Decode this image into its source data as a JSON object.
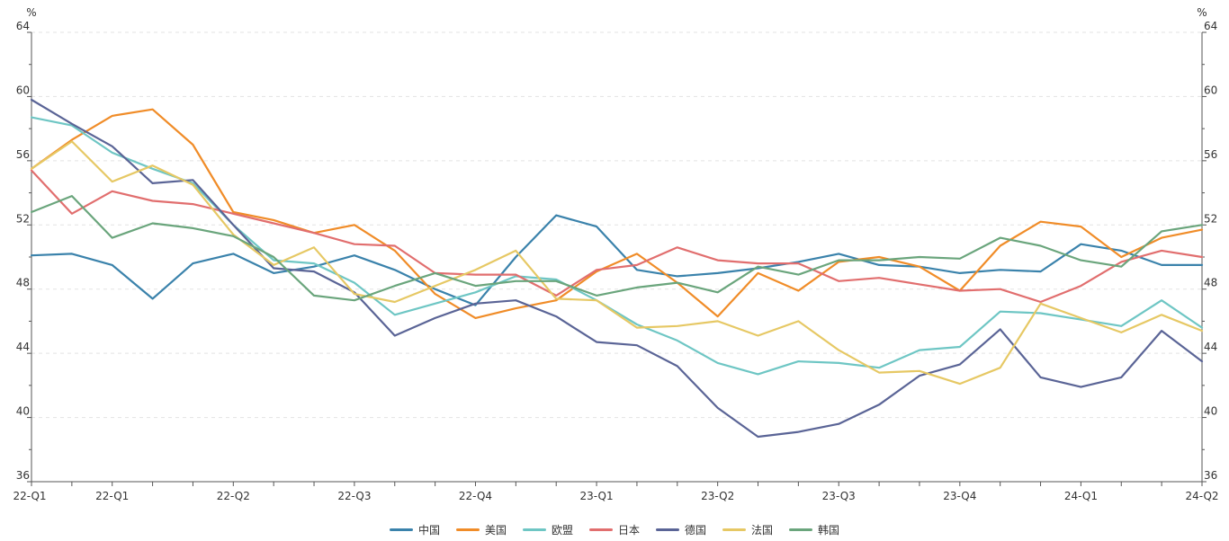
{
  "chart_data": {
    "type": "line",
    "title": "",
    "ylabel_left": "%",
    "ylabel_right": "%",
    "ylim": [
      36,
      64
    ],
    "yticks": [
      "36",
      "40",
      "44",
      "48",
      "52",
      "56",
      "60",
      "64"
    ],
    "xlabels": [
      "22-Q1",
      "22-Q1",
      "22-Q2",
      "22-Q3",
      "22-Q4",
      "23-Q1",
      "23-Q2",
      "23-Q3",
      "23-Q4",
      "24-Q1",
      "24-Q2"
    ],
    "xlabel_indices": [
      0,
      2,
      5,
      8,
      11,
      14,
      17,
      20,
      23,
      26,
      29
    ],
    "grid": true,
    "legend_position": "bottom-center",
    "series": [
      {
        "name": "中国",
        "color": "#3a82ab",
        "values": [
          50.1,
          50.2,
          49.5,
          47.4,
          49.6,
          50.2,
          49.0,
          49.4,
          50.1,
          49.2,
          48.0,
          47.0,
          50.0,
          52.6,
          51.9,
          49.2,
          48.8,
          49.0,
          49.3,
          49.7,
          50.2,
          49.5,
          49.4,
          49.0,
          49.2,
          49.1,
          50.8,
          50.4,
          49.5,
          49.5
        ]
      },
      {
        "name": "美国",
        "color": "#f08c28",
        "values": [
          55.5,
          57.3,
          58.8,
          59.2,
          57.0,
          52.8,
          52.3,
          51.5,
          52.0,
          50.4,
          47.7,
          46.2,
          46.8,
          47.3,
          49.1,
          50.2,
          48.4,
          46.3,
          49.0,
          47.9,
          49.7,
          50.0,
          49.4,
          47.9,
          50.7,
          52.2,
          51.9,
          50.0,
          51.2,
          51.7
        ]
      },
      {
        "name": "欧盟",
        "color": "#6ec6c4",
        "values": [
          58.7,
          58.2,
          56.5,
          55.5,
          54.6,
          52.0,
          49.8,
          49.6,
          48.4,
          46.4,
          47.1,
          47.8,
          48.8,
          48.6,
          47.3,
          45.8,
          44.8,
          43.4,
          42.7,
          43.5,
          43.4,
          43.1,
          44.2,
          44.4,
          46.6,
          46.5,
          46.1,
          45.7,
          47.3,
          45.6
        ]
      },
      {
        "name": "日本",
        "color": "#e16e6e",
        "values": [
          55.4,
          52.7,
          54.1,
          53.5,
          53.3,
          52.7,
          52.1,
          51.5,
          50.8,
          50.7,
          49.0,
          48.9,
          48.9,
          47.6,
          49.2,
          49.5,
          50.6,
          49.8,
          49.6,
          49.6,
          48.5,
          48.7,
          48.3,
          47.9,
          48.0,
          47.2,
          48.2,
          49.7,
          50.4,
          50.0
        ]
      },
      {
        "name": "德国",
        "color": "#5a6496",
        "values": [
          59.8,
          58.3,
          56.9,
          54.6,
          54.8,
          52.0,
          49.3,
          49.1,
          47.8,
          45.1,
          46.2,
          47.1,
          47.3,
          46.3,
          44.7,
          44.5,
          43.2,
          40.6,
          38.8,
          39.1,
          39.6,
          40.8,
          42.6,
          43.3,
          45.5,
          42.5,
          41.9,
          42.5,
          45.4,
          43.5
        ]
      },
      {
        "name": "法国",
        "color": "#e6c864",
        "values": [
          55.5,
          57.2,
          54.7,
          55.7,
          54.5,
          51.4,
          49.5,
          50.6,
          47.7,
          47.2,
          48.2,
          49.2,
          50.4,
          47.4,
          47.3,
          45.6,
          45.7,
          46.0,
          45.1,
          46.0,
          44.2,
          42.8,
          42.9,
          42.1,
          43.1,
          47.1,
          46.2,
          45.3,
          46.4,
          45.4
        ]
      },
      {
        "name": "韩国",
        "color": "#6aa57c",
        "values": [
          52.8,
          53.8,
          51.2,
          52.1,
          51.8,
          51.3,
          50.0,
          47.6,
          47.3,
          48.2,
          49.0,
          48.2,
          48.5,
          48.5,
          47.6,
          48.1,
          48.4,
          47.8,
          49.4,
          48.9,
          49.8,
          49.8,
          50.0,
          49.9,
          51.2,
          50.7,
          49.8,
          49.4,
          51.6,
          52.0
        ]
      }
    ]
  }
}
